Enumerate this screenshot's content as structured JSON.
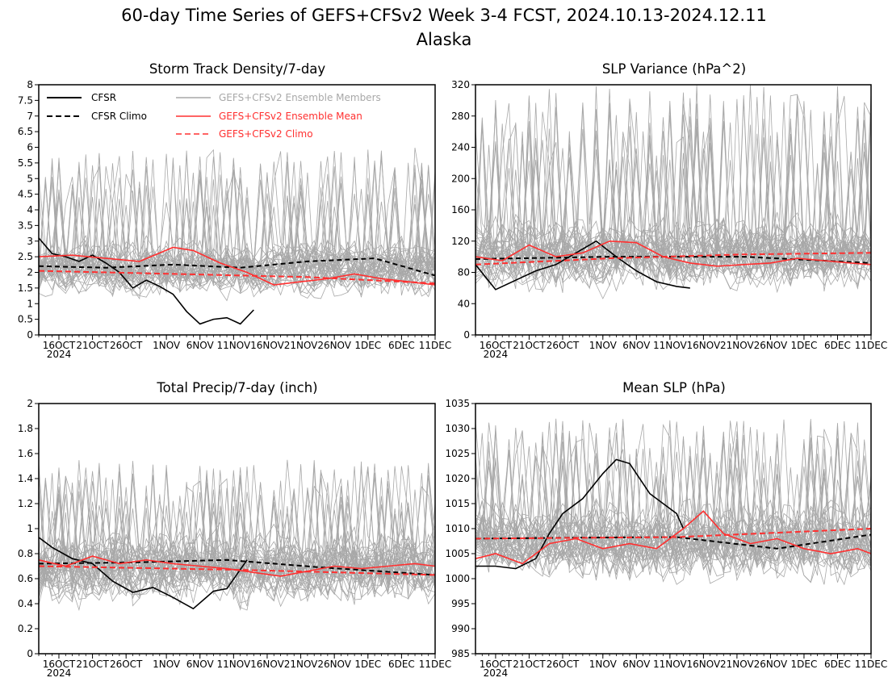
{
  "title_line1": "60-day Time Series of GEFS+CFSv2 Week 3-4 FCST, 2024.10.13-2024.12.11",
  "title_line2": "Alaska",
  "x_tick_labels": [
    "16OCT",
    "21OCT",
    "26OCT",
    "1NOV",
    "6NOV",
    "11NOV",
    "16NOV",
    "21NOV",
    "26NOV",
    "1DEC",
    "6DEC",
    "11DEC"
  ],
  "x_year_label": "2024",
  "legend": {
    "cfsr": "CFSR",
    "cfsr_climo": "CFSR Climo",
    "members": "GEFS+CFSv2 Ensemble Members",
    "ens_mean": "GEFS+CFSv2 Ensemble Mean",
    "gefs_climo": "GEFS+CFSv2 Climo"
  },
  "colors": {
    "cfsr": "#000000",
    "members": "#a8a8a8",
    "ens_mean": "#ff3030",
    "gefs_climo": "#ff3030"
  },
  "chart_data": [
    {
      "type": "line",
      "title": "Storm Track Density/7-day",
      "x_start": "2024-10-13",
      "x_end": "2024-12-11",
      "ylim": [
        0,
        8
      ],
      "yticks": [
        0,
        0.5,
        1,
        1.5,
        2,
        2.5,
        3,
        3.5,
        4,
        4.5,
        5,
        5.5,
        6,
        6.5,
        7,
        7.5,
        8
      ],
      "ytick_labels": [
        "0",
        "0.5",
        "1",
        "1.5",
        "2",
        "2.5",
        "3",
        "3.5",
        "4",
        "4.5",
        "5",
        "5.5",
        "6",
        "6.5",
        "7",
        "7.5",
        "8"
      ],
      "ensemble_members": {
        "count": 40,
        "center": 2.1,
        "spread": 0.9,
        "max": 6.0
      },
      "series": [
        {
          "name": "CFSR",
          "style": "solid-black",
          "x": [
            "2024-10-13",
            "2024-10-15",
            "2024-10-17",
            "2024-10-19",
            "2024-10-21",
            "2024-10-23",
            "2024-10-25",
            "2024-10-27",
            "2024-10-29",
            "2024-10-31",
            "2024-11-02",
            "2024-11-04",
            "2024-11-06",
            "2024-11-08",
            "2024-11-10",
            "2024-11-12",
            "2024-11-14"
          ],
          "y": [
            3.1,
            2.6,
            2.5,
            2.35,
            2.55,
            2.3,
            2.0,
            1.5,
            1.75,
            1.55,
            1.3,
            0.75,
            0.35,
            0.5,
            0.55,
            0.35,
            0.8
          ]
        },
        {
          "name": "CFSR Climo",
          "style": "dashed-black",
          "x": [
            "2024-10-13",
            "2024-10-23",
            "2024-11-02",
            "2024-11-12",
            "2024-11-22",
            "2024-12-02",
            "2024-12-11"
          ],
          "y": [
            2.2,
            2.15,
            2.25,
            2.15,
            2.35,
            2.45,
            1.9
          ]
        },
        {
          "name": "GEFS+CFSv2 Ensemble Mean",
          "style": "solid-red",
          "x": [
            "2024-10-13",
            "2024-10-18",
            "2024-10-23",
            "2024-10-28",
            "2024-11-02",
            "2024-11-05",
            "2024-11-09",
            "2024-11-13",
            "2024-11-17",
            "2024-11-21",
            "2024-11-25",
            "2024-11-29",
            "2024-12-03",
            "2024-12-07",
            "2024-12-11"
          ],
          "y": [
            2.5,
            2.55,
            2.45,
            2.35,
            2.8,
            2.7,
            2.3,
            2.0,
            1.6,
            1.7,
            1.8,
            1.95,
            1.8,
            1.7,
            1.6
          ]
        },
        {
          "name": "GEFS+CFSv2 Climo",
          "style": "dashed-red",
          "x": [
            "2024-10-13",
            "2024-11-02",
            "2024-11-22",
            "2024-12-11"
          ],
          "y": [
            2.05,
            1.95,
            1.85,
            1.65
          ]
        }
      ]
    },
    {
      "type": "line",
      "title": "SLP Variance (hPa^2)",
      "x_start": "2024-10-13",
      "x_end": "2024-12-11",
      "ylim": [
        0,
        320
      ],
      "yticks": [
        0,
        40,
        80,
        120,
        160,
        200,
        240,
        280,
        320
      ],
      "ytick_labels": [
        "0",
        "40",
        "80",
        "120",
        "160",
        "200",
        "240",
        "280",
        "320"
      ],
      "ensemble_members": {
        "count": 40,
        "center": 100,
        "spread": 48,
        "max": 320
      },
      "series": [
        {
          "name": "CFSR",
          "style": "solid-black",
          "x": [
            "2024-10-13",
            "2024-10-16",
            "2024-10-19",
            "2024-10-22",
            "2024-10-25",
            "2024-10-28",
            "2024-10-31",
            "2024-11-03",
            "2024-11-06",
            "2024-11-09",
            "2024-11-12",
            "2024-11-14"
          ],
          "y": [
            90,
            58,
            70,
            82,
            90,
            105,
            120,
            100,
            82,
            68,
            62,
            60
          ]
        },
        {
          "name": "CFSR Climo",
          "style": "dashed-black",
          "x": [
            "2024-10-13",
            "2024-11-02",
            "2024-11-22",
            "2024-12-11"
          ],
          "y": [
            97,
            100,
            100,
            92
          ]
        },
        {
          "name": "GEFS+CFSv2 Ensemble Mean",
          "style": "solid-red",
          "x": [
            "2024-10-13",
            "2024-10-17",
            "2024-10-21",
            "2024-10-25",
            "2024-10-29",
            "2024-11-02",
            "2024-11-06",
            "2024-11-10",
            "2024-11-14",
            "2024-11-18",
            "2024-11-22",
            "2024-11-26",
            "2024-11-30",
            "2024-12-04",
            "2024-12-08",
            "2024-12-11"
          ],
          "y": [
            100,
            95,
            115,
            100,
            105,
            120,
            118,
            100,
            92,
            88,
            90,
            92,
            98,
            95,
            92,
            90
          ]
        },
        {
          "name": "GEFS+CFSv2 Climo",
          "style": "dashed-red",
          "x": [
            "2024-10-13",
            "2024-11-02",
            "2024-11-22",
            "2024-12-11"
          ],
          "y": [
            90,
            98,
            103,
            105
          ]
        }
      ]
    },
    {
      "type": "line",
      "title": "Total Precip/7-day (inch)",
      "x_start": "2024-10-13",
      "x_end": "2024-12-11",
      "ylim": [
        0,
        2
      ],
      "yticks": [
        0,
        0.2,
        0.4,
        0.6,
        0.8,
        1,
        1.2,
        1.4,
        1.6,
        1.8,
        2
      ],
      "ytick_labels": [
        "0",
        "0.2",
        "0.4",
        "0.6",
        "0.8",
        "1",
        "1.2",
        "1.4",
        "1.6",
        "1.8",
        "2"
      ],
      "ensemble_members": {
        "count": 40,
        "center": 0.68,
        "spread": 0.3,
        "max": 1.55
      },
      "series": [
        {
          "name": "CFSR",
          "style": "solid-black",
          "x": [
            "2024-10-13",
            "2024-10-15",
            "2024-10-18",
            "2024-10-21",
            "2024-10-24",
            "2024-10-27",
            "2024-10-30",
            "2024-11-02",
            "2024-11-05",
            "2024-11-08",
            "2024-11-10",
            "2024-11-13"
          ],
          "y": [
            0.93,
            0.85,
            0.76,
            0.72,
            0.58,
            0.49,
            0.53,
            0.45,
            0.36,
            0.5,
            0.52,
            0.75
          ]
        },
        {
          "name": "CFSR Climo",
          "style": "dashed-black",
          "x": [
            "2024-10-13",
            "2024-10-27",
            "2024-11-10",
            "2024-11-24",
            "2024-12-11"
          ],
          "y": [
            0.72,
            0.73,
            0.75,
            0.69,
            0.63
          ]
        },
        {
          "name": "GEFS+CFSv2 Ensemble Mean",
          "style": "solid-red",
          "x": [
            "2024-10-13",
            "2024-10-17",
            "2024-10-21",
            "2024-10-25",
            "2024-10-29",
            "2024-11-02",
            "2024-11-06",
            "2024-11-10",
            "2024-11-14",
            "2024-11-18",
            "2024-11-22",
            "2024-11-26",
            "2024-11-30",
            "2024-12-04",
            "2024-12-08",
            "2024-12-11"
          ],
          "y": [
            0.75,
            0.7,
            0.78,
            0.72,
            0.75,
            0.72,
            0.7,
            0.68,
            0.65,
            0.62,
            0.66,
            0.7,
            0.68,
            0.7,
            0.72,
            0.7
          ]
        },
        {
          "name": "GEFS+CFSv2 Climo",
          "style": "dashed-red",
          "x": [
            "2024-10-13",
            "2024-11-12",
            "2024-12-11"
          ],
          "y": [
            0.7,
            0.67,
            0.63
          ]
        }
      ]
    },
    {
      "type": "line",
      "title": "Mean SLP (hPa)",
      "x_start": "2024-10-13",
      "x_end": "2024-12-11",
      "ylim": [
        985,
        1035
      ],
      "yticks": [
        985,
        990,
        995,
        1000,
        1005,
        1010,
        1015,
        1020,
        1025,
        1030,
        1035
      ],
      "ytick_labels": [
        "985",
        "990",
        "995",
        "1000",
        "1005",
        "1010",
        "1015",
        "1020",
        "1025",
        "1030",
        "1035"
      ],
      "ensemble_members": {
        "count": 40,
        "center": 1007,
        "spread": 8,
        "max": 1032
      },
      "series": [
        {
          "name": "CFSR",
          "style": "solid-black",
          "x": [
            "2024-10-13",
            "2024-10-16",
            "2024-10-19",
            "2024-10-22",
            "2024-10-24",
            "2024-10-26",
            "2024-10-29",
            "2024-11-01",
            "2024-11-03",
            "2024-11-05",
            "2024-11-08",
            "2024-11-10",
            "2024-11-12",
            "2024-11-13"
          ],
          "y": [
            1002.5,
            1002.5,
            1002,
            1004,
            1009,
            1013,
            1016,
            1021,
            1023.8,
            1023,
            1017,
            1015,
            1013,
            1010
          ]
        },
        {
          "name": "CFSR Climo",
          "style": "dashed-black",
          "x": [
            "2024-10-13",
            "2024-10-28",
            "2024-11-12",
            "2024-11-27",
            "2024-12-11"
          ],
          "y": [
            1008,
            1008.2,
            1008.3,
            1006,
            1008.8
          ]
        },
        {
          "name": "GEFS+CFSv2 Ensemble Mean",
          "style": "solid-red",
          "x": [
            "2024-10-13",
            "2024-10-16",
            "2024-10-20",
            "2024-10-24",
            "2024-10-28",
            "2024-11-01",
            "2024-11-05",
            "2024-11-09",
            "2024-11-13",
            "2024-11-16",
            "2024-11-19",
            "2024-11-23",
            "2024-11-27",
            "2024-12-01",
            "2024-12-05",
            "2024-12-09",
            "2024-12-11"
          ],
          "y": [
            1004,
            1005,
            1003,
            1007,
            1008,
            1006,
            1007,
            1006,
            1010,
            1013.5,
            1009,
            1007,
            1008,
            1006,
            1005,
            1006,
            1005
          ]
        },
        {
          "name": "GEFS+CFSv2 Climo",
          "style": "dashed-red",
          "x": [
            "2024-10-13",
            "2024-11-12",
            "2024-12-11"
          ],
          "y": [
            1008,
            1008.3,
            1010
          ]
        }
      ]
    }
  ]
}
